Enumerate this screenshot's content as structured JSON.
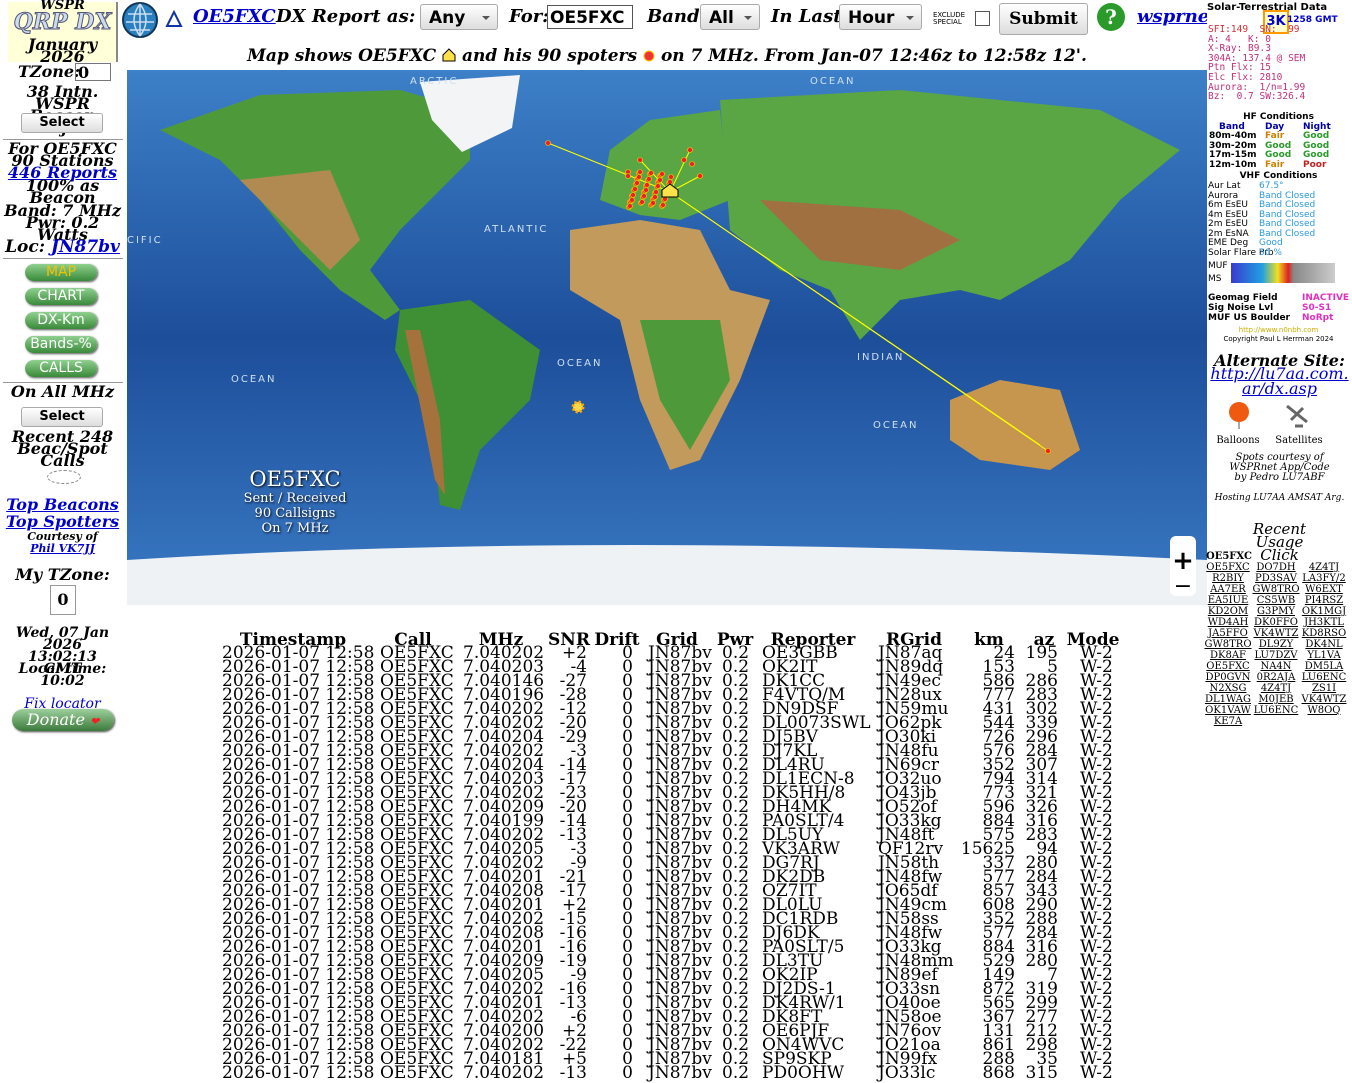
{
  "sidebar": {
    "logo_top": "WSPR",
    "logo": "QRP DX",
    "month": "January",
    "year": "2026",
    "tzone_label": "TZone:",
    "tzone_value": "0",
    "project": "38 Intn. WSPR Beacon Project",
    "select1": "Select",
    "for_label": "For OE5FXC",
    "stations": "90 Stations",
    "reports": "446 Reports",
    "beacon": "100% as Beacon",
    "band": "Band: 7 MHz",
    "pwr": "Pwr: 0.2 Watts",
    "loc_label": "Loc:",
    "loc": "JN87bv",
    "buttons": [
      "MAP",
      "CHART",
      "DX-Km",
      "Bands-%",
      "CALLS"
    ],
    "all_mhz": "On All MHz",
    "select2": "Select",
    "recent": "Recent 248 Beac/Spot Calls",
    "top_beacons": "Top Beacons",
    "top_spotters": "Top Spotters",
    "courtesy": "Courtesy of",
    "phil": "Phil VK7JJ",
    "my_tzone": "My TZone:",
    "my_tzone_value": "0",
    "date": "Wed, 07 Jan 2026 13:02:13 GMT",
    "local_label": "Local time:",
    "local_time": "10:02",
    "fix": "Fix locator",
    "donate": "Donate"
  },
  "toolbar": {
    "callsign": "OE5FXC",
    "report_label": "DX Report as:",
    "report_value": "Any",
    "for_label": "For:",
    "for_value": "OE5FXC",
    "band_label": "Band:",
    "band_value": "All",
    "last_label": "In Last:",
    "last_value": "Hour",
    "exclude": "EXCLUDE SPECIAL",
    "submit": "Submit",
    "help": "?",
    "site": "wsprnet.org"
  },
  "map": {
    "caption_start": "Map shows OE5FXC",
    "caption_mid": "and his 90 spoters",
    "caption_end": "on 7 MHz. From Jan-07 12:46z to 12:58z 12'.",
    "labels": [
      "ARCTIC",
      "OCEAN",
      "ATLANTIC",
      "CIFIC",
      "OCEAN",
      "OCEAN",
      "INDIAN",
      "OCEAN"
    ],
    "overlay": {
      "call": "OE5FXC",
      "line1": "Sent / Received",
      "line2": "90 Callsigns",
      "line3": "On 7 MHz"
    },
    "zoom_in": "+",
    "zoom_out": "−"
  },
  "solar": {
    "title": "Solar-Terrestrial Data",
    "k": "3K",
    "time": "1258 GMT",
    "lines": [
      "SFI:149  SN:  99",
      "A: 4   K: 0",
      "X-Ray: B9.3",
      "304A: 137.4 @ SEM",
      "Ptn Flx: 15",
      "Elc Flx: 2810",
      "Aurora:  1/n=1.99",
      "Bz:  0.7 SW:326.4"
    ],
    "hf_title": "HF Conditions",
    "hf_head": [
      "Band",
      "Day",
      "Night"
    ],
    "hf_rows": [
      [
        "80m-40m",
        "Fair",
        "Good"
      ],
      [
        "30m-20m",
        "Good",
        "Good"
      ],
      [
        "17m-15m",
        "Good",
        "Good"
      ],
      [
        "12m-10m",
        "Fair",
        "Poor"
      ]
    ],
    "vhf_title": "VHF Conditions",
    "vhf_rows": [
      [
        "Aur Lat",
        "67.5°"
      ],
      [
        "Aurora",
        "Band Closed"
      ],
      [
        "6m EsEU",
        "Band Closed"
      ],
      [
        "4m EsEU",
        "Band Closed"
      ],
      [
        "2m EsEU",
        "Band Closed"
      ],
      [
        "2m EsNA",
        "Band Closed"
      ],
      [
        "EME Deg",
        "Good"
      ],
      [
        "Solar Flare Prb",
        "50 %"
      ]
    ],
    "muf": "MUF",
    "ms": "MS",
    "geo_rows": [
      [
        "Geomag Field",
        "INACTIVE"
      ],
      [
        "Sig Noise Lvl",
        "S0-S1"
      ],
      [
        "MUF US Boulder",
        "NoRpt"
      ]
    ],
    "url": "http://www.n0nbh.com",
    "copy": "Copyright Paul L Herrman 2024"
  },
  "right": {
    "alt_label": "Alternate Site:",
    "alt_url": "http://lu7aa.com.ar/dx.asp",
    "balloons": "Balloons",
    "satellites": "Satellites",
    "credits": "Spots courtesy of WSPRnet App/Code by Pedro LU7ABF",
    "hosting": "Hosting LU7AA AMSAT Arg.",
    "usage_title": "Recent Usage Click",
    "usage_head": "OE5FXC",
    "usage": [
      "OE5FXC",
      "DO7DH",
      "4Z4TJ",
      "R2BIY",
      "PD3SAV",
      "LA3FY/2",
      "AA7ER",
      "GW8TRO",
      "W6EXT",
      "EA5IUE",
      "CS5WB",
      "PI4RSZ",
      "KD2OM",
      "G3PMY",
      "OK1MGJ",
      "WD4AH",
      "DK0FFO",
      "JH3KTL",
      "JA5FFO",
      "VK4WTZ",
      "KD8RSO",
      "GW8TRO",
      "DL9ZY",
      "DK4NL",
      "DK8AF",
      "LU7DZV",
      "YL1VA",
      "OE5FXC",
      "NA4N",
      "DM5LA",
      "DP0GVN",
      "0R2AJA",
      "LU6ENC",
      "N2XSG",
      "4Z4TJ",
      "ZS1I",
      "DL1WAG",
      "M0JEB",
      "VK4WTZ",
      "OK1VAW",
      "LU6ENC",
      "W8OQ",
      "KE7A"
    ]
  },
  "table": {
    "columns": [
      "Timestamp",
      "Call",
      "MHz",
      "SNR",
      "Drift",
      "Grid",
      "Pwr",
      "Reporter",
      "RGrid",
      "km",
      "az",
      "Mode"
    ],
    "rows": [
      [
        "2026-01-07 12:58",
        "OE5FXC",
        "7.040202",
        "+2",
        "0",
        "JN87bv",
        "0.2",
        "OE3GBB",
        "JN87aq",
        "24",
        "195",
        "W-2"
      ],
      [
        "2026-01-07 12:58",
        "OE5FXC",
        "7.040203",
        "-4",
        "0",
        "JN87bv",
        "0.2",
        "OK2IT",
        "JN89dq",
        "153",
        "5",
        "W-2"
      ],
      [
        "2026-01-07 12:58",
        "OE5FXC",
        "7.040146",
        "-27",
        "0",
        "JN87bv",
        "0.2",
        "DK1CC",
        "JN49ec",
        "586",
        "286",
        "W-2"
      ],
      [
        "2026-01-07 12:58",
        "OE5FXC",
        "7.040196",
        "-28",
        "0",
        "JN87bv",
        "0.2",
        "F4VTQ/M",
        "JN28ux",
        "777",
        "283",
        "W-2"
      ],
      [
        "2026-01-07 12:58",
        "OE5FXC",
        "7.040202",
        "-12",
        "0",
        "JN87bv",
        "0.2",
        "DN9DSF",
        "JN59mu",
        "431",
        "302",
        "W-2"
      ],
      [
        "2026-01-07 12:58",
        "OE5FXC",
        "7.040202",
        "-20",
        "0",
        "JN87bv",
        "0.2",
        "DL0073SWL",
        "JO62pk",
        "544",
        "339",
        "W-2"
      ],
      [
        "2026-01-07 12:58",
        "OE5FXC",
        "7.040204",
        "-29",
        "0",
        "JN87bv",
        "0.2",
        "DJ5BV",
        "JO30ki",
        "726",
        "296",
        "W-2"
      ],
      [
        "2026-01-07 12:58",
        "OE5FXC",
        "7.040202",
        "-3",
        "0",
        "JN87bv",
        "0.2",
        "DJ7KL",
        "JN48fu",
        "576",
        "284",
        "W-2"
      ],
      [
        "2026-01-07 12:58",
        "OE5FXC",
        "7.040204",
        "-14",
        "0",
        "JN87bv",
        "0.2",
        "DL4RU",
        "JN69cr",
        "352",
        "307",
        "W-2"
      ],
      [
        "2026-01-07 12:58",
        "OE5FXC",
        "7.040203",
        "-17",
        "0",
        "JN87bv",
        "0.2",
        "DL1ECN-8",
        "JO32uo",
        "794",
        "314",
        "W-2"
      ],
      [
        "2026-01-07 12:58",
        "OE5FXC",
        "7.040202",
        "-23",
        "0",
        "JN87bv",
        "0.2",
        "DK5HH/8",
        "JO43jb",
        "773",
        "321",
        "W-2"
      ],
      [
        "2026-01-07 12:58",
        "OE5FXC",
        "7.040209",
        "-20",
        "0",
        "JN87bv",
        "0.2",
        "DH4MK",
        "JO52of",
        "596",
        "326",
        "W-2"
      ],
      [
        "2026-01-07 12:58",
        "OE5FXC",
        "7.040199",
        "-14",
        "0",
        "JN87bv",
        "0.2",
        "PA0SLT/4",
        "JO33kg",
        "884",
        "316",
        "W-2"
      ],
      [
        "2026-01-07 12:58",
        "OE5FXC",
        "7.040202",
        "-13",
        "0",
        "JN87bv",
        "0.2",
        "DL5UY",
        "JN48ft",
        "575",
        "283",
        "W-2"
      ],
      [
        "2026-01-07 12:58",
        "OE5FXC",
        "7.040205",
        "-3",
        "0",
        "JN87bv",
        "0.2",
        "VK3ARW",
        "QF12rv",
        "15625",
        "94",
        "W-2"
      ],
      [
        "2026-01-07 12:58",
        "OE5FXC",
        "7.040202",
        "-9",
        "0",
        "JN87bv",
        "0.2",
        "DG7RJ",
        "JN58th",
        "337",
        "280",
        "W-2"
      ],
      [
        "2026-01-07 12:58",
        "OE5FXC",
        "7.040201",
        "-21",
        "0",
        "JN87bv",
        "0.2",
        "DK2DB",
        "JN48fw",
        "577",
        "284",
        "W-2"
      ],
      [
        "2026-01-07 12:58",
        "OE5FXC",
        "7.040208",
        "-17",
        "0",
        "JN87bv",
        "0.2",
        "OZ7IT",
        "JO65df",
        "857",
        "343",
        "W-2"
      ],
      [
        "2026-01-07 12:58",
        "OE5FXC",
        "7.040201",
        "+2",
        "0",
        "JN87bv",
        "0.2",
        "DL0LU",
        "JN49cm",
        "608",
        "290",
        "W-2"
      ],
      [
        "2026-01-07 12:58",
        "OE5FXC",
        "7.040202",
        "-15",
        "0",
        "JN87bv",
        "0.2",
        "DC1RDB",
        "JN58ss",
        "352",
        "288",
        "W-2"
      ],
      [
        "2026-01-07 12:58",
        "OE5FXC",
        "7.040208",
        "-16",
        "0",
        "JN87bv",
        "0.2",
        "DJ6DK",
        "JN48fw",
        "577",
        "284",
        "W-2"
      ],
      [
        "2026-01-07 12:58",
        "OE5FXC",
        "7.040201",
        "-16",
        "0",
        "JN87bv",
        "0.2",
        "PA0SLT/5",
        "JO33kg",
        "884",
        "316",
        "W-2"
      ],
      [
        "2026-01-07 12:58",
        "OE5FXC",
        "7.040209",
        "-19",
        "0",
        "JN87bv",
        "0.2",
        "DL3TU",
        "JN48mm",
        "529",
        "280",
        "W-2"
      ],
      [
        "2026-01-07 12:58",
        "OE5FXC",
        "7.040205",
        "-9",
        "0",
        "JN87bv",
        "0.2",
        "OK2IP",
        "JN89ef",
        "149",
        "7",
        "W-2"
      ],
      [
        "2026-01-07 12:58",
        "OE5FXC",
        "7.040202",
        "-16",
        "0",
        "JN87bv",
        "0.2",
        "DJ2DS-1",
        "JO33sn",
        "872",
        "319",
        "W-2"
      ],
      [
        "2026-01-07 12:58",
        "OE5FXC",
        "7.040201",
        "-13",
        "0",
        "JN87bv",
        "0.2",
        "DK4RW/1",
        "JO40oe",
        "565",
        "299",
        "W-2"
      ],
      [
        "2026-01-07 12:58",
        "OE5FXC",
        "7.040202",
        "-6",
        "0",
        "JN87bv",
        "0.2",
        "DK8FT",
        "JN58oe",
        "367",
        "277",
        "W-2"
      ],
      [
        "2026-01-07 12:58",
        "OE5FXC",
        "7.040200",
        "+2",
        "0",
        "JN87bv",
        "0.2",
        "OE6PJF",
        "JN76ov",
        "131",
        "212",
        "W-2"
      ],
      [
        "2026-01-07 12:58",
        "OE5FXC",
        "7.040202",
        "-22",
        "0",
        "JN87bv",
        "0.2",
        "ON4WVC",
        "JO21oa",
        "861",
        "298",
        "W-2"
      ],
      [
        "2026-01-07 12:58",
        "OE5FXC",
        "7.040181",
        "+5",
        "0",
        "JN87bv",
        "0.2",
        "SP9SKP",
        "JN99fx",
        "288",
        "35",
        "W-2"
      ],
      [
        "2026-01-07 12:58",
        "OE5FXC",
        "7.040202",
        "-13",
        "0",
        "JN87bv",
        "0.2",
        "PD0OHW",
        "JO33lc",
        "868",
        "315",
        "W-2"
      ]
    ]
  }
}
